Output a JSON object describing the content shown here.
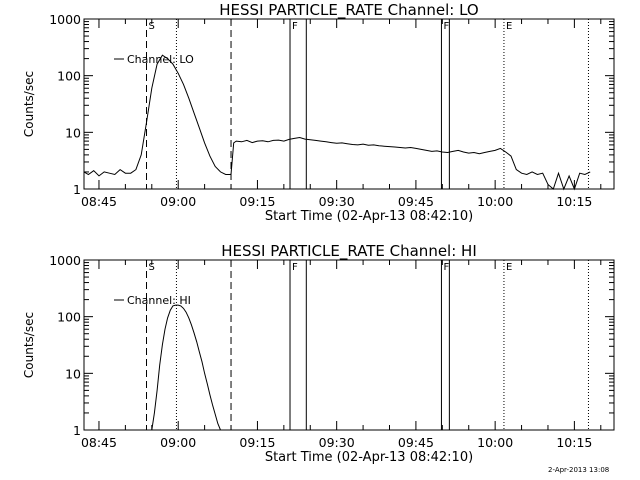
{
  "chart_data": [
    {
      "type": "line",
      "title": "HESSI PARTICLE_RATE Channel: LO",
      "xlabel": "Start Time (02-Apr-13 08:42:10)",
      "ylabel": "Counts/sec",
      "yscale": "log",
      "ylim": [
        1,
        1000
      ],
      "xlim": [
        "08:42:10",
        "10:22:30"
      ],
      "x_ticks": [
        "08:45",
        "09:00",
        "09:15",
        "09:30",
        "09:45",
        "10:00",
        "10:15"
      ],
      "y_ticks": [
        "1",
        "10",
        "100",
        "1000"
      ],
      "legend": "top-left",
      "series": [
        {
          "name": "Channel: LO",
          "x": [
            "08:42:10",
            "08:43:00",
            "08:44:00",
            "08:45:00",
            "08:46:00",
            "08:47:00",
            "08:48:00",
            "08:49:00",
            "08:50:00",
            "08:51:00",
            "08:52:00",
            "08:53:00",
            "08:54:00",
            "08:55:00",
            "08:56:00",
            "08:57:00",
            "08:58:00",
            "08:59:00",
            "09:00:00",
            "09:01:00",
            "09:02:00",
            "09:03:00",
            "09:04:00",
            "09:05:00",
            "09:06:00",
            "09:07:00",
            "09:08:00",
            "09:09:00",
            "09:10:00",
            "09:10:30",
            "09:11:00",
            "09:12:00",
            "09:13:00",
            "09:14:00",
            "09:15:00",
            "09:16:00",
            "09:17:00",
            "09:18:00",
            "09:19:00",
            "09:20:00",
            "09:21:00",
            "09:22:00",
            "09:23:00",
            "09:24:00",
            "09:25:00",
            "09:26:00",
            "09:27:00",
            "09:28:00",
            "09:29:00",
            "09:30:00",
            "09:31:00",
            "09:32:00",
            "09:33:00",
            "09:34:00",
            "09:35:00",
            "09:36:00",
            "09:37:00",
            "09:38:00",
            "09:39:00",
            "09:40:00",
            "09:41:00",
            "09:42:00",
            "09:43:00",
            "09:44:00",
            "09:45:00",
            "09:46:00",
            "09:47:00",
            "09:48:00",
            "09:49:00",
            "09:50:00",
            "09:51:00",
            "09:52:00",
            "09:53:00",
            "09:54:00",
            "09:55:00",
            "09:56:00",
            "09:57:00",
            "09:58:00",
            "09:59:00",
            "10:00:00",
            "10:01:00",
            "10:02:00",
            "10:03:00",
            "10:04:00",
            "10:05:00",
            "10:06:00",
            "10:07:00",
            "10:08:00",
            "10:09:00",
            "10:10:00",
            "10:11:00",
            "10:12:00",
            "10:13:00",
            "10:14:00",
            "10:15:00",
            "10:16:00",
            "10:17:00",
            "10:18:00"
          ],
          "y": [
            2.0,
            1.8,
            2.1,
            1.7,
            2.0,
            1.9,
            1.8,
            2.2,
            1.9,
            1.9,
            2.2,
            4,
            15,
            60,
            160,
            230,
            200,
            160,
            110,
            70,
            40,
            22,
            12,
            6.5,
            3.8,
            2.5,
            2.0,
            1.8,
            1.8,
            6.5,
            7.0,
            6.8,
            7.2,
            6.6,
            7.0,
            7.1,
            6.8,
            7.2,
            7.3,
            7.0,
            7.5,
            7.8,
            8.1,
            7.6,
            7.4,
            7.2,
            7.0,
            6.8,
            6.6,
            6.4,
            6.5,
            6.3,
            6.1,
            6.0,
            6.2,
            5.9,
            6.0,
            5.8,
            5.7,
            5.6,
            5.5,
            5.4,
            5.3,
            5.4,
            5.2,
            5.0,
            4.8,
            4.6,
            4.7,
            4.5,
            4.4,
            4.6,
            4.8,
            4.5,
            4.3,
            4.4,
            4.2,
            4.4,
            4.6,
            4.8,
            5.2,
            4.5,
            3.8,
            2.2,
            1.9,
            1.8,
            2.0,
            1.8,
            1.9,
            1.2,
            1.0,
            1.9,
            1.0,
            1.7,
            1.0,
            1.9,
            1.8,
            2.0
          ]
        }
      ],
      "annotations": [
        {
          "label": "S",
          "x": "08:54:00",
          "style": "dashed"
        },
        {
          "label": "",
          "x": "09:10:00",
          "style": "dashed"
        },
        {
          "label": "",
          "x": "08:59:40",
          "style": "dotted"
        },
        {
          "label": "F",
          "x": "09:21:10",
          "style": "solid"
        },
        {
          "label": "",
          "x": "09:24:15",
          "style": "solid"
        },
        {
          "label": "F",
          "x": "09:49:50",
          "style": "solid"
        },
        {
          "label": "",
          "x": "09:51:20",
          "style": "solid"
        },
        {
          "label": "E",
          "x": "10:01:40",
          "style": "dotted"
        },
        {
          "label": "",
          "x": "10:17:40",
          "style": "dotted"
        }
      ]
    },
    {
      "type": "line",
      "title": "HESSI PARTICLE_RATE Channel: HI",
      "xlabel": "Start Time (02-Apr-13 08:42:10)",
      "ylabel": "Counts/sec",
      "yscale": "log",
      "ylim": [
        1,
        1000
      ],
      "xlim": [
        "08:42:10",
        "10:22:30"
      ],
      "x_ticks": [
        "08:45",
        "09:00",
        "09:15",
        "09:30",
        "09:45",
        "10:00",
        "10:15"
      ],
      "y_ticks": [
        "1",
        "10",
        "100",
        "1000"
      ],
      "legend": "top-left",
      "series": [
        {
          "name": "Channel: HI",
          "x": [
            "08:55:00",
            "08:55:30",
            "08:56:00",
            "08:56:30",
            "08:57:00",
            "08:57:30",
            "08:58:00",
            "08:58:30",
            "08:59:00",
            "08:59:30",
            "09:00:00",
            "09:00:30",
            "09:01:00",
            "09:01:30",
            "09:02:00",
            "09:02:30",
            "09:03:00",
            "09:03:30",
            "09:04:00",
            "09:04:30",
            "09:05:00",
            "09:05:30",
            "09:06:00",
            "09:06:30",
            "09:07:00",
            "09:07:30",
            "09:08:00"
          ],
          "y": [
            1.0,
            2.0,
            5,
            14,
            32,
            60,
            95,
            130,
            155,
            160,
            160,
            155,
            140,
            120,
            95,
            72,
            52,
            36,
            24,
            16,
            10,
            6.5,
            4.2,
            2.8,
            1.9,
            1.3,
            1.0
          ]
        }
      ],
      "annotations": [
        {
          "label": "S",
          "x": "08:54:00",
          "style": "dashed"
        },
        {
          "label": "",
          "x": "09:10:00",
          "style": "dashed"
        },
        {
          "label": "",
          "x": "08:59:40",
          "style": "dotted"
        },
        {
          "label": "F",
          "x": "09:21:10",
          "style": "solid"
        },
        {
          "label": "",
          "x": "09:24:15",
          "style": "solid"
        },
        {
          "label": "F",
          "x": "09:49:50",
          "style": "solid"
        },
        {
          "label": "",
          "x": "09:51:20",
          "style": "solid"
        },
        {
          "label": "E",
          "x": "10:01:40",
          "style": "dotted"
        },
        {
          "label": "",
          "x": "10:17:40",
          "style": "dotted"
        }
      ]
    }
  ],
  "footer": {
    "timestamp": "2-Apr-2013 13:08"
  }
}
